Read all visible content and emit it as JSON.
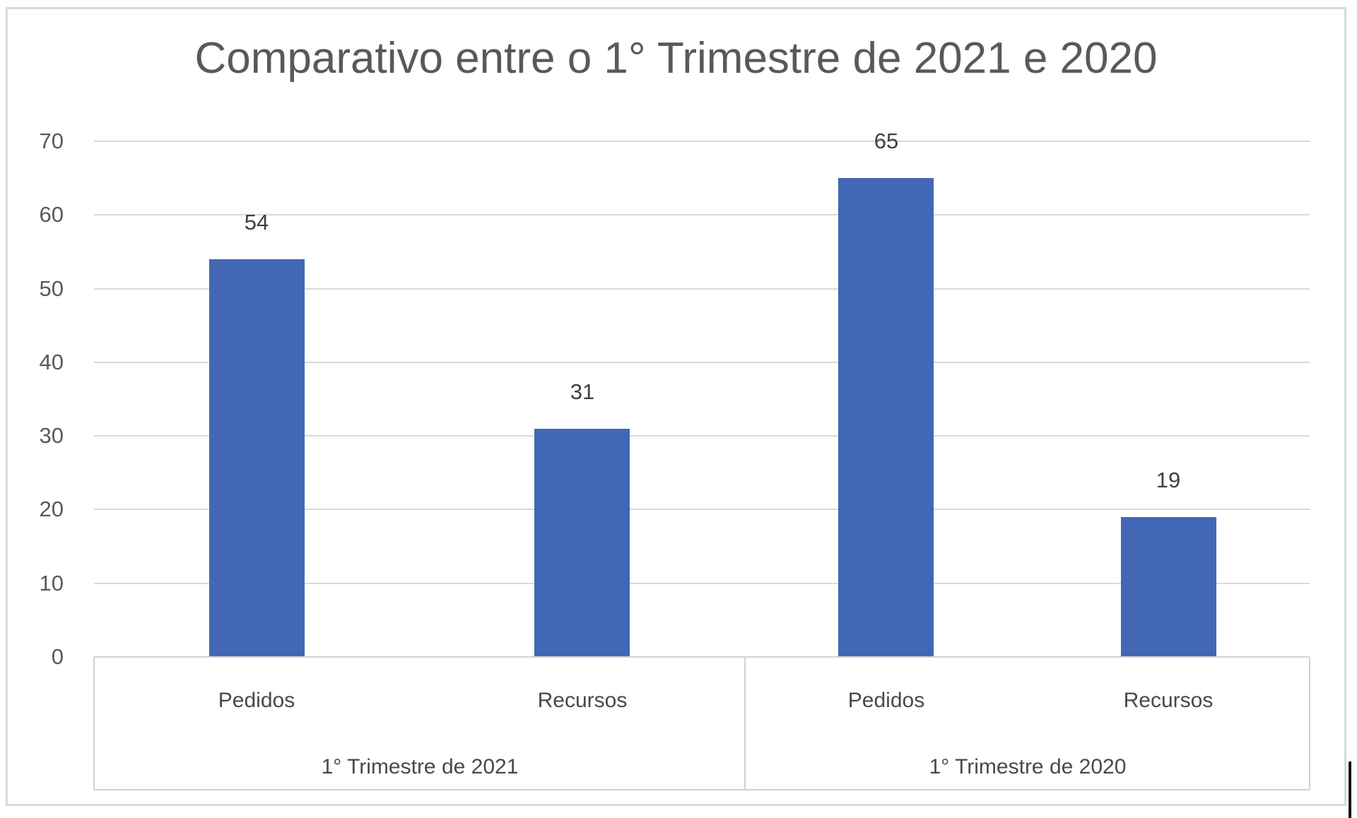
{
  "chart_data": {
    "type": "bar",
    "title": "Comparativo entre o 1° Trimestre de 2021 e 2020",
    "xlabel": "",
    "ylabel": "",
    "ylim": [
      0,
      70
    ],
    "yticks": [
      0,
      10,
      20,
      30,
      40,
      50,
      60,
      70
    ],
    "grid": true,
    "legend_position": "none",
    "value_labels_shown": true,
    "groups": [
      {
        "label": "1° Trimestre de 2021",
        "categories": [
          "Pedidos",
          "Recursos"
        ],
        "values": [
          54,
          31
        ]
      },
      {
        "label": "1° Trimestre de 2020",
        "categories": [
          "Pedidos",
          "Recursos"
        ],
        "values": [
          65,
          19
        ]
      }
    ]
  },
  "colors": {
    "bar": "#4267b4",
    "gridline": "#d9d9d9",
    "frame_border": "#d9d9d9",
    "axis_text": "#595959",
    "value_label_text": "#3f3f3f",
    "category_text": "#494949",
    "background": "#ffffff"
  }
}
